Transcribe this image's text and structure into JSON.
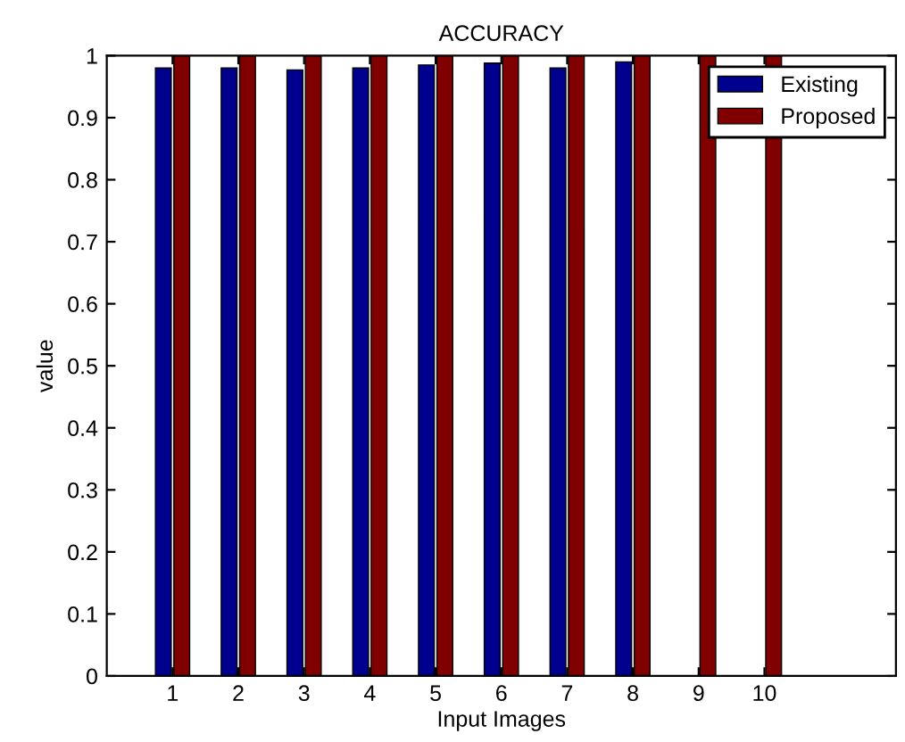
{
  "chart_data": {
    "type": "bar",
    "title": "ACCURACY",
    "xlabel": "Input Images",
    "ylabel": "value",
    "x": [
      1,
      2,
      3,
      4,
      5,
      6,
      7,
      8,
      9,
      10
    ],
    "series": [
      {
        "name": "Existing",
        "color": "#00008f",
        "values": [
          0.98,
          0.98,
          0.977,
          0.98,
          0.985,
          0.988,
          0.98,
          0.99,
          null,
          null
        ]
      },
      {
        "name": "Proposed",
        "color": "#800000",
        "values": [
          1,
          1,
          1,
          1,
          1,
          1,
          1,
          1,
          1,
          1
        ]
      }
    ],
    "xlim": [
      0,
      12
    ],
    "xticks": [
      1,
      2,
      3,
      4,
      5,
      6,
      7,
      8,
      9,
      10
    ],
    "ylim": [
      0,
      1
    ],
    "yticks": [
      0,
      0.1,
      0.2,
      0.3,
      0.4,
      0.5,
      0.6,
      0.7,
      0.8,
      0.9,
      1
    ],
    "grid": false,
    "legend": "top right"
  }
}
